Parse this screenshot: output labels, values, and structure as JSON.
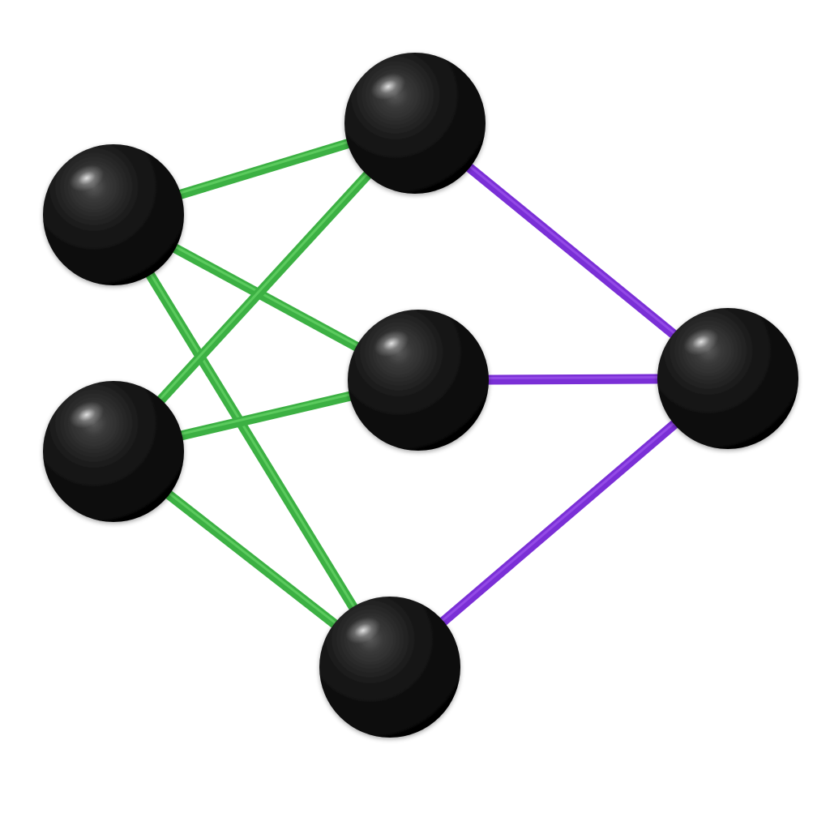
{
  "colors": {
    "background": "#ffffff",
    "input_edge": "#3cb043",
    "input_edge_highlight": "#6fdc6f",
    "output_edge": "#7a2fd6",
    "output_edge_highlight": "#a45cf0",
    "node": "#0e0e0e"
  },
  "nodes": [
    {
      "id": "input-top"
    },
    {
      "id": "input-bottom"
    },
    {
      "id": "hidden-top"
    },
    {
      "id": "hidden-middle"
    },
    {
      "id": "hidden-bottom"
    },
    {
      "id": "output"
    }
  ],
  "edges": [
    {
      "from": "input-top",
      "to": "hidden-top",
      "kind": "input"
    },
    {
      "from": "input-top",
      "to": "hidden-middle",
      "kind": "input"
    },
    {
      "from": "input-top",
      "to": "hidden-bottom",
      "kind": "input"
    },
    {
      "from": "input-bottom",
      "to": "hidden-top",
      "kind": "input"
    },
    {
      "from": "input-bottom",
      "to": "hidden-middle",
      "kind": "input"
    },
    {
      "from": "input-bottom",
      "to": "hidden-bottom",
      "kind": "input"
    },
    {
      "from": "hidden-top",
      "to": "output",
      "kind": "output"
    },
    {
      "from": "hidden-middle",
      "to": "output",
      "kind": "output"
    },
    {
      "from": "hidden-bottom",
      "to": "output",
      "kind": "output"
    }
  ]
}
